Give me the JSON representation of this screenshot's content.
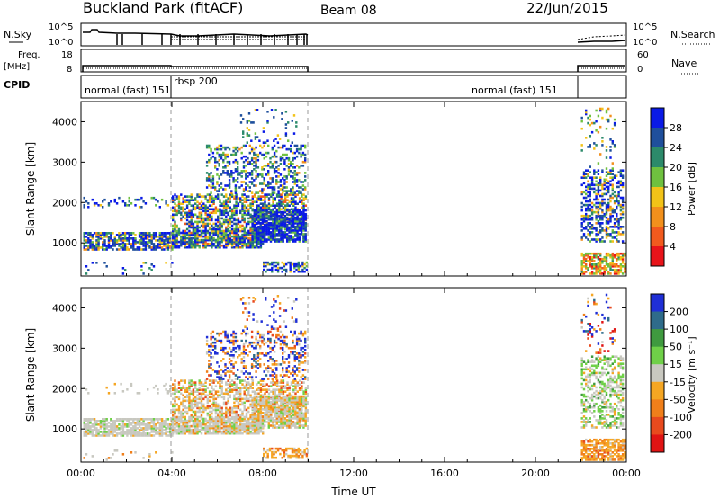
{
  "header": {
    "station": "Buckland Park (fitACF)",
    "beam": "Beam 08",
    "date": "22/Jun/2015"
  },
  "panels": {
    "nsky": {
      "label": "N.Sky",
      "ticks": [
        "10^5",
        "10^0"
      ],
      "right_ticks": [
        "10^5",
        "10^0"
      ],
      "right_label": "N.Search"
    },
    "freq": {
      "label_top": "Freq.",
      "label_bottom": "[MHz]",
      "ticks": [
        "18",
        "8"
      ],
      "right_ticks": [
        "60",
        "0"
      ],
      "right_label": "Nave"
    },
    "cpid": {
      "label": "CPID",
      "modes": [
        "normal (fast) 151",
        "rbsp 200",
        "normal (fast) 151"
      ]
    }
  },
  "colors": {
    "power_scale": [
      "#0a1ae6",
      "#1f4f9c",
      "#2c8a6a",
      "#6fc13f",
      "#f2c318",
      "#f2901c",
      "#f15a1e",
      "#e8141a"
    ],
    "velocity_scale": [
      "#1f2fd6",
      "#2e6b8a",
      "#3f9a3f",
      "#6fd048",
      "#c8c8c0",
      "#f5a623",
      "#f07f1a",
      "#e84a1e",
      "#e01414"
    ]
  },
  "chart_data": [
    {
      "type": "heatmap",
      "quantity": "Power",
      "ylabel": "Slant Range [km]",
      "xlabel": "",
      "yticks": [
        "1000",
        "2000",
        "3000",
        "4000"
      ],
      "xticks": [
        "00:00",
        "04:00",
        "08:00",
        "12:00",
        "16:00",
        "20:00",
        "00:00"
      ],
      "xlim_hours": [
        0,
        24
      ],
      "ylim_km": [
        180,
        4500
      ],
      "colorbar_label": "Power [dB]",
      "colorbar_ticks": [
        "28",
        "24",
        "20",
        "16",
        "12",
        "8",
        "4"
      ],
      "colorbar_range": [
        0,
        30
      ]
    },
    {
      "type": "heatmap",
      "quantity": "Velocity",
      "ylabel": "Slant Range [km]",
      "xlabel": "Time UT",
      "yticks": [
        "1000",
        "2000",
        "3000",
        "4000"
      ],
      "xticks": [
        "00:00",
        "04:00",
        "08:00",
        "12:00",
        "16:00",
        "20:00",
        "00:00"
      ],
      "xlim_hours": [
        0,
        24
      ],
      "ylim_km": [
        180,
        4500
      ],
      "colorbar_label": "Velocity [m s⁻¹]",
      "colorbar_ticks": [
        "200",
        "100",
        "50",
        "15",
        "-15",
        "-50",
        "-100",
        "-200"
      ],
      "colorbar_range": [
        -250,
        250
      ]
    }
  ]
}
